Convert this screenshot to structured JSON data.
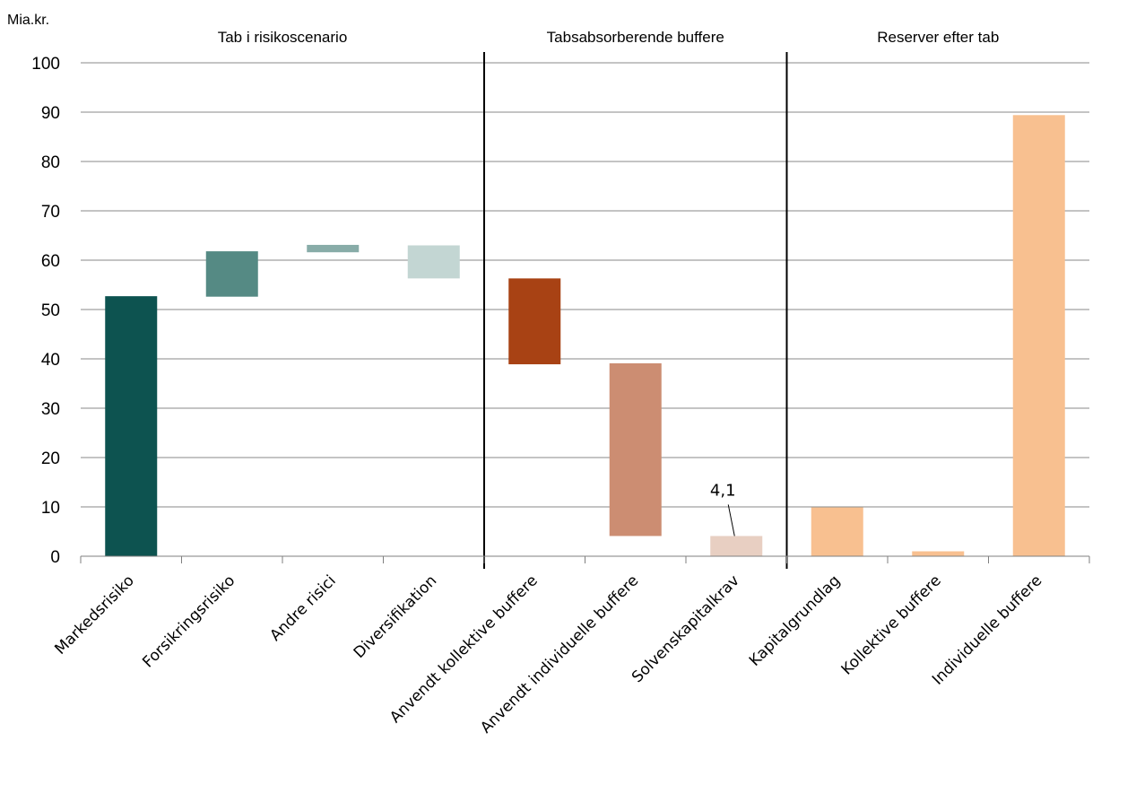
{
  "chart_data": {
    "type": "bar",
    "subtype": "waterfall",
    "ylabel": "Mia.kr.",
    "ylim": [
      0,
      100
    ],
    "yticks": [
      0,
      10,
      20,
      30,
      40,
      50,
      60,
      70,
      80,
      90,
      100
    ],
    "grid": true,
    "sections": [
      {
        "label": "Tab i risikoscenario",
        "categories": [
          0,
          1,
          2,
          3
        ]
      },
      {
        "label": "Tabsabsorberende buffere",
        "categories": [
          4,
          5,
          6
        ]
      },
      {
        "label": "Reserver efter tab",
        "categories": [
          7,
          8,
          9
        ]
      }
    ],
    "categories": [
      "Markedsrisiko",
      "Forsikringsrisiko",
      "Andre risici",
      "Diversifikation",
      "Anvendt kollektive buffere",
      "Anvendt individuelle buffere",
      "Solvenskapitalkrav",
      "Kapitalgrundlag",
      "Kollektive buffere",
      "Individuelle buffere"
    ],
    "bars": [
      {
        "bottom": 0,
        "top": 52.7,
        "color": "#0d5350"
      },
      {
        "bottom": 52.6,
        "top": 61.8,
        "color": "#558a84"
      },
      {
        "bottom": 61.6,
        "top": 63.1,
        "color": "#88aca8"
      },
      {
        "bottom": 56.3,
        "top": 63.0,
        "color": "#c3d6d3"
      },
      {
        "bottom": 38.9,
        "top": 56.3,
        "color": "#a84214"
      },
      {
        "bottom": 4.1,
        "top": 39.1,
        "color": "#cc8d72"
      },
      {
        "bottom": 0,
        "top": 4.1,
        "color": "#e8cfc2"
      },
      {
        "bottom": 0,
        "top": 9.9,
        "color": "#f8c090"
      },
      {
        "bottom": 0,
        "top": 1.0,
        "color": "#f8c090"
      },
      {
        "bottom": 0,
        "top": 89.4,
        "color": "#f8c090"
      }
    ],
    "annotations": [
      {
        "category": 6,
        "text": "4,1"
      }
    ]
  }
}
